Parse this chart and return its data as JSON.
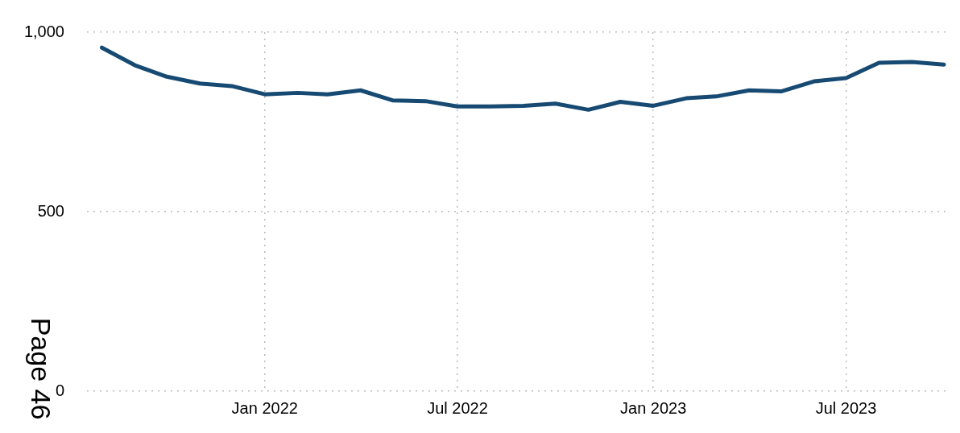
{
  "chart_data": {
    "type": "line",
    "x": [
      "2021-08",
      "2021-09",
      "2021-10",
      "2021-11",
      "2021-12",
      "2022-01",
      "2022-02",
      "2022-03",
      "2022-04",
      "2022-05",
      "2022-06",
      "2022-07",
      "2022-08",
      "2022-09",
      "2022-10",
      "2022-11",
      "2022-12",
      "2023-01",
      "2023-02",
      "2023-03",
      "2023-04",
      "2023-05",
      "2023-06",
      "2023-07",
      "2023-08",
      "2023-09",
      "2023-10"
    ],
    "series": [
      {
        "color": "#174a73",
        "values": [
          957,
          908,
          876,
          857,
          850,
          827,
          831,
          827,
          838,
          810,
          808,
          793,
          793,
          795,
          801,
          784,
          806,
          795,
          816,
          821,
          838,
          835,
          863,
          872,
          915,
          917,
          910
        ]
      }
    ],
    "xlim": [
      "2021-07-18",
      "2023-10-07"
    ],
    "xticks": [
      {
        "value": "2022-01",
        "label": "Jan 2022"
      },
      {
        "value": "2022-07",
        "label": "Jul 2022"
      },
      {
        "value": "2023-01",
        "label": "Jan 2023"
      },
      {
        "value": "2023-07",
        "label": "Jul 2023"
      }
    ],
    "ylim": [
      0,
      1000
    ],
    "yticks": [
      0,
      500,
      {
        "value": 1000,
        "label": "1,000"
      }
    ],
    "grid": true,
    "legend": false,
    "marker": "none",
    "line_style": "solid",
    "annotations": [
      "Page 46"
    ]
  }
}
